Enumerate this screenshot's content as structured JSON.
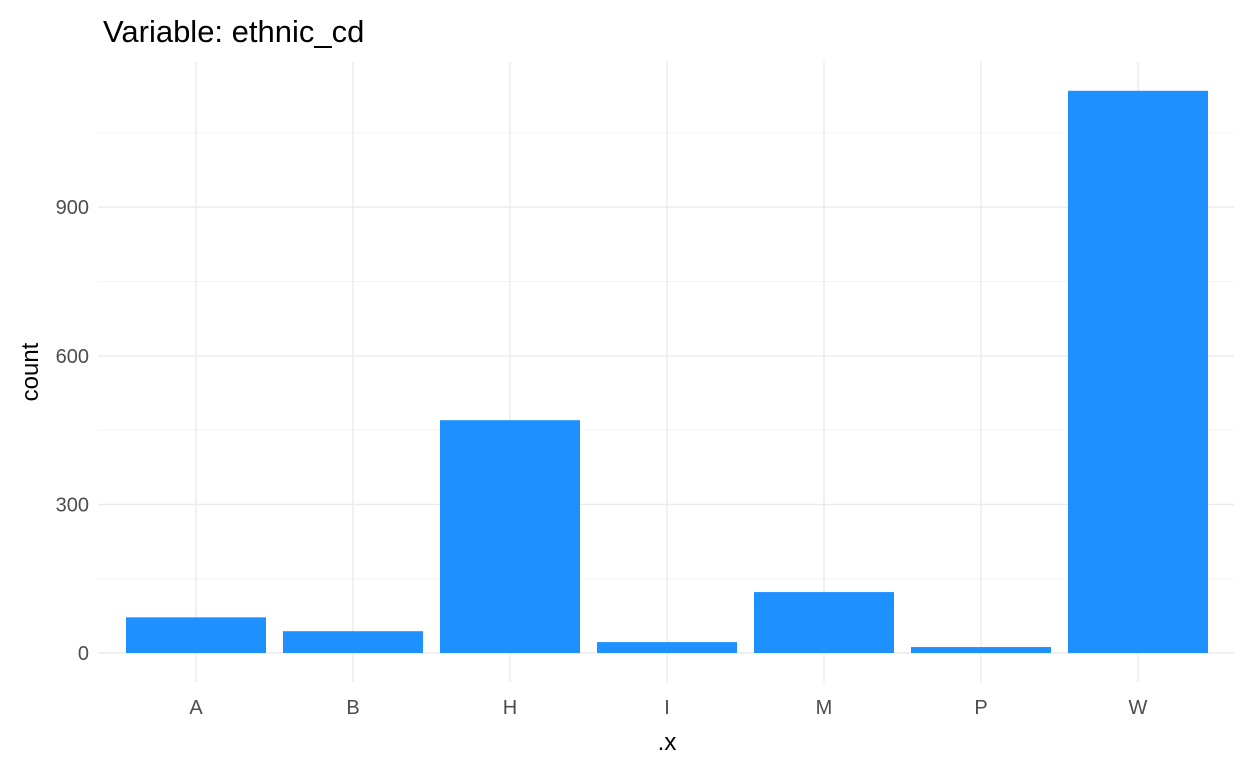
{
  "chart_data": {
    "type": "bar",
    "title": "Variable: ethnic_cd",
    "xlabel": ".x",
    "ylabel": "count",
    "categories": [
      "A",
      "B",
      "H",
      "I",
      "M",
      "P",
      "W"
    ],
    "values": [
      72,
      44,
      470,
      22,
      123,
      12,
      1135
    ],
    "ylim": [
      0,
      1135
    ],
    "yticks": [
      0,
      300,
      600,
      900
    ],
    "ytick_labels": [
      "0",
      "300",
      "600",
      "900"
    ],
    "bar_color": "#1E90FF",
    "grid": true,
    "legend": "none"
  }
}
